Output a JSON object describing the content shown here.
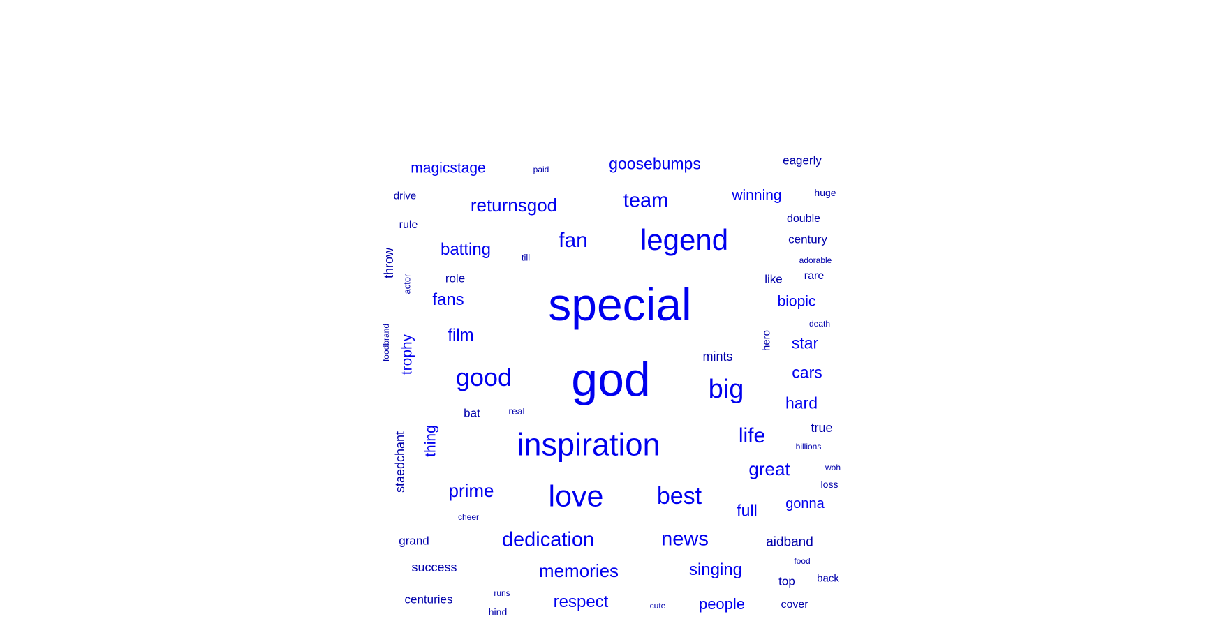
{
  "word_cloud": {
    "colors": {
      "large": "#0000ee",
      "small": "#0000aa"
    },
    "words": [
      {
        "text": "special"
      },
      {
        "text": "god"
      },
      {
        "text": "inspiration"
      },
      {
        "text": "love"
      },
      {
        "text": "legend"
      },
      {
        "text": "good"
      },
      {
        "text": "big"
      },
      {
        "text": "best"
      },
      {
        "text": "dedication"
      },
      {
        "text": "news"
      },
      {
        "text": "memories"
      },
      {
        "text": "returnsgod"
      },
      {
        "text": "goosebumps"
      },
      {
        "text": "magicstage"
      },
      {
        "text": "eagerly"
      },
      {
        "text": "team"
      },
      {
        "text": "winning"
      },
      {
        "text": "fan"
      },
      {
        "text": "batting"
      },
      {
        "text": "fans"
      },
      {
        "text": "film"
      },
      {
        "text": "prime"
      },
      {
        "text": "life"
      },
      {
        "text": "great"
      },
      {
        "text": "respect"
      },
      {
        "text": "singing"
      },
      {
        "text": "people"
      },
      {
        "text": "biopic"
      },
      {
        "text": "star"
      },
      {
        "text": "cars"
      },
      {
        "text": "hard"
      },
      {
        "text": "full"
      },
      {
        "text": "gonna"
      },
      {
        "text": "aidband"
      },
      {
        "text": "mints"
      },
      {
        "text": "success"
      },
      {
        "text": "centuries"
      },
      {
        "text": "grand"
      },
      {
        "text": "true"
      },
      {
        "text": "top"
      },
      {
        "text": "cover"
      },
      {
        "text": "century"
      },
      {
        "text": "double"
      },
      {
        "text": "rare"
      },
      {
        "text": "like"
      },
      {
        "text": "role"
      },
      {
        "text": "bat"
      },
      {
        "text": "rule"
      },
      {
        "text": "drive"
      },
      {
        "text": "huge"
      },
      {
        "text": "real"
      },
      {
        "text": "till"
      },
      {
        "text": "paid"
      },
      {
        "text": "adorable"
      },
      {
        "text": "death"
      },
      {
        "text": "billions"
      },
      {
        "text": "woh"
      },
      {
        "text": "loss"
      },
      {
        "text": "food"
      },
      {
        "text": "back"
      },
      {
        "text": "cute"
      },
      {
        "text": "runs"
      },
      {
        "text": "hind"
      },
      {
        "text": "cheer"
      },
      {
        "text": "throw"
      },
      {
        "text": "actor"
      },
      {
        "text": "foodbrand"
      },
      {
        "text": "trophy"
      },
      {
        "text": "hero"
      },
      {
        "text": "thing"
      },
      {
        "text": "staedchant"
      }
    ]
  }
}
